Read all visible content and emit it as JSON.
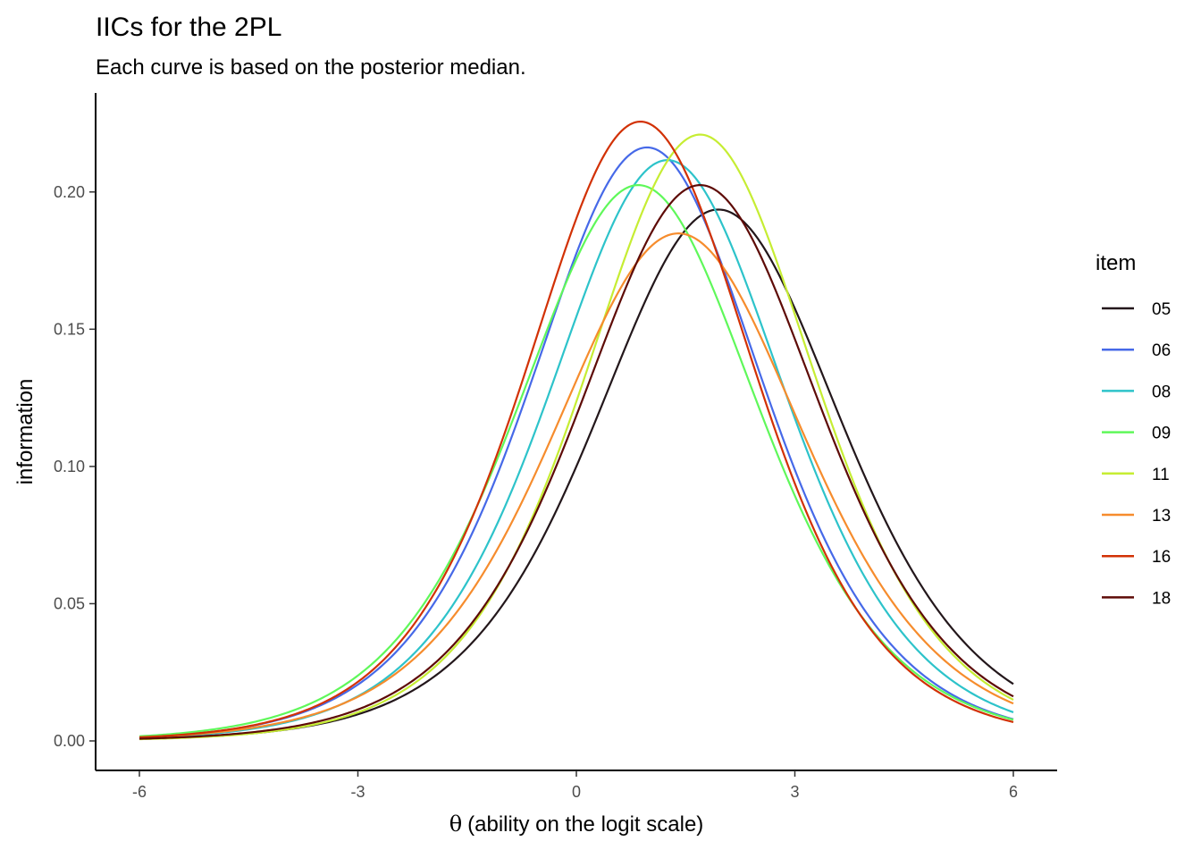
{
  "chart_data": {
    "type": "line",
    "title": "IICs for the 2PL",
    "subtitle": "Each curve is based on the posterior median.",
    "xlabel_symbol": "θ",
    "xlabel": "(ability on the logit scale)",
    "ylabel": "information",
    "xlim": [
      -6,
      6
    ],
    "ylim": [
      0,
      0.225
    ],
    "x_ticks": [
      -6,
      -3,
      0,
      3,
      6
    ],
    "x_tick_labels": [
      "-6",
      "-3",
      "0",
      "3",
      "6"
    ],
    "y_ticks": [
      0,
      0.05,
      0.1,
      0.15,
      0.2
    ],
    "y_tick_labels": [
      "0.00",
      "0.05",
      "0.10",
      "0.15",
      "0.20"
    ],
    "grid": false,
    "legend": {
      "title": "item",
      "position": "right"
    },
    "curve_form": "2PL item information I(θ) = a²·P(θ)·(1 − P(θ)), P(θ) = 1 / (1 + exp(−a·(θ − b)))",
    "series": [
      {
        "name": "05",
        "color": "#23171b",
        "a": 0.88,
        "b": 1.95,
        "peak_information": 0.193
      },
      {
        "name": "06",
        "color": "#4669e8",
        "a": 0.93,
        "b": 0.97,
        "peak_information": 0.215
      },
      {
        "name": "08",
        "color": "#2dc3ca",
        "a": 0.92,
        "b": 1.25,
        "peak_information": 0.212
      },
      {
        "name": "09",
        "color": "#5ff85a",
        "a": 0.9,
        "b": 0.85,
        "peak_information": 0.202
      },
      {
        "name": "11",
        "color": "#c6ed33",
        "a": 0.94,
        "b": 1.7,
        "peak_information": 0.219
      },
      {
        "name": "13",
        "color": "#f68c2d",
        "a": 0.86,
        "b": 1.4,
        "peak_information": 0.184
      },
      {
        "name": "16",
        "color": "#d23105",
        "a": 0.95,
        "b": 0.88,
        "peak_information": 0.225
      },
      {
        "name": "18",
        "color": "#5e0b07",
        "a": 0.9,
        "b": 1.7,
        "peak_information": 0.203
      }
    ]
  }
}
